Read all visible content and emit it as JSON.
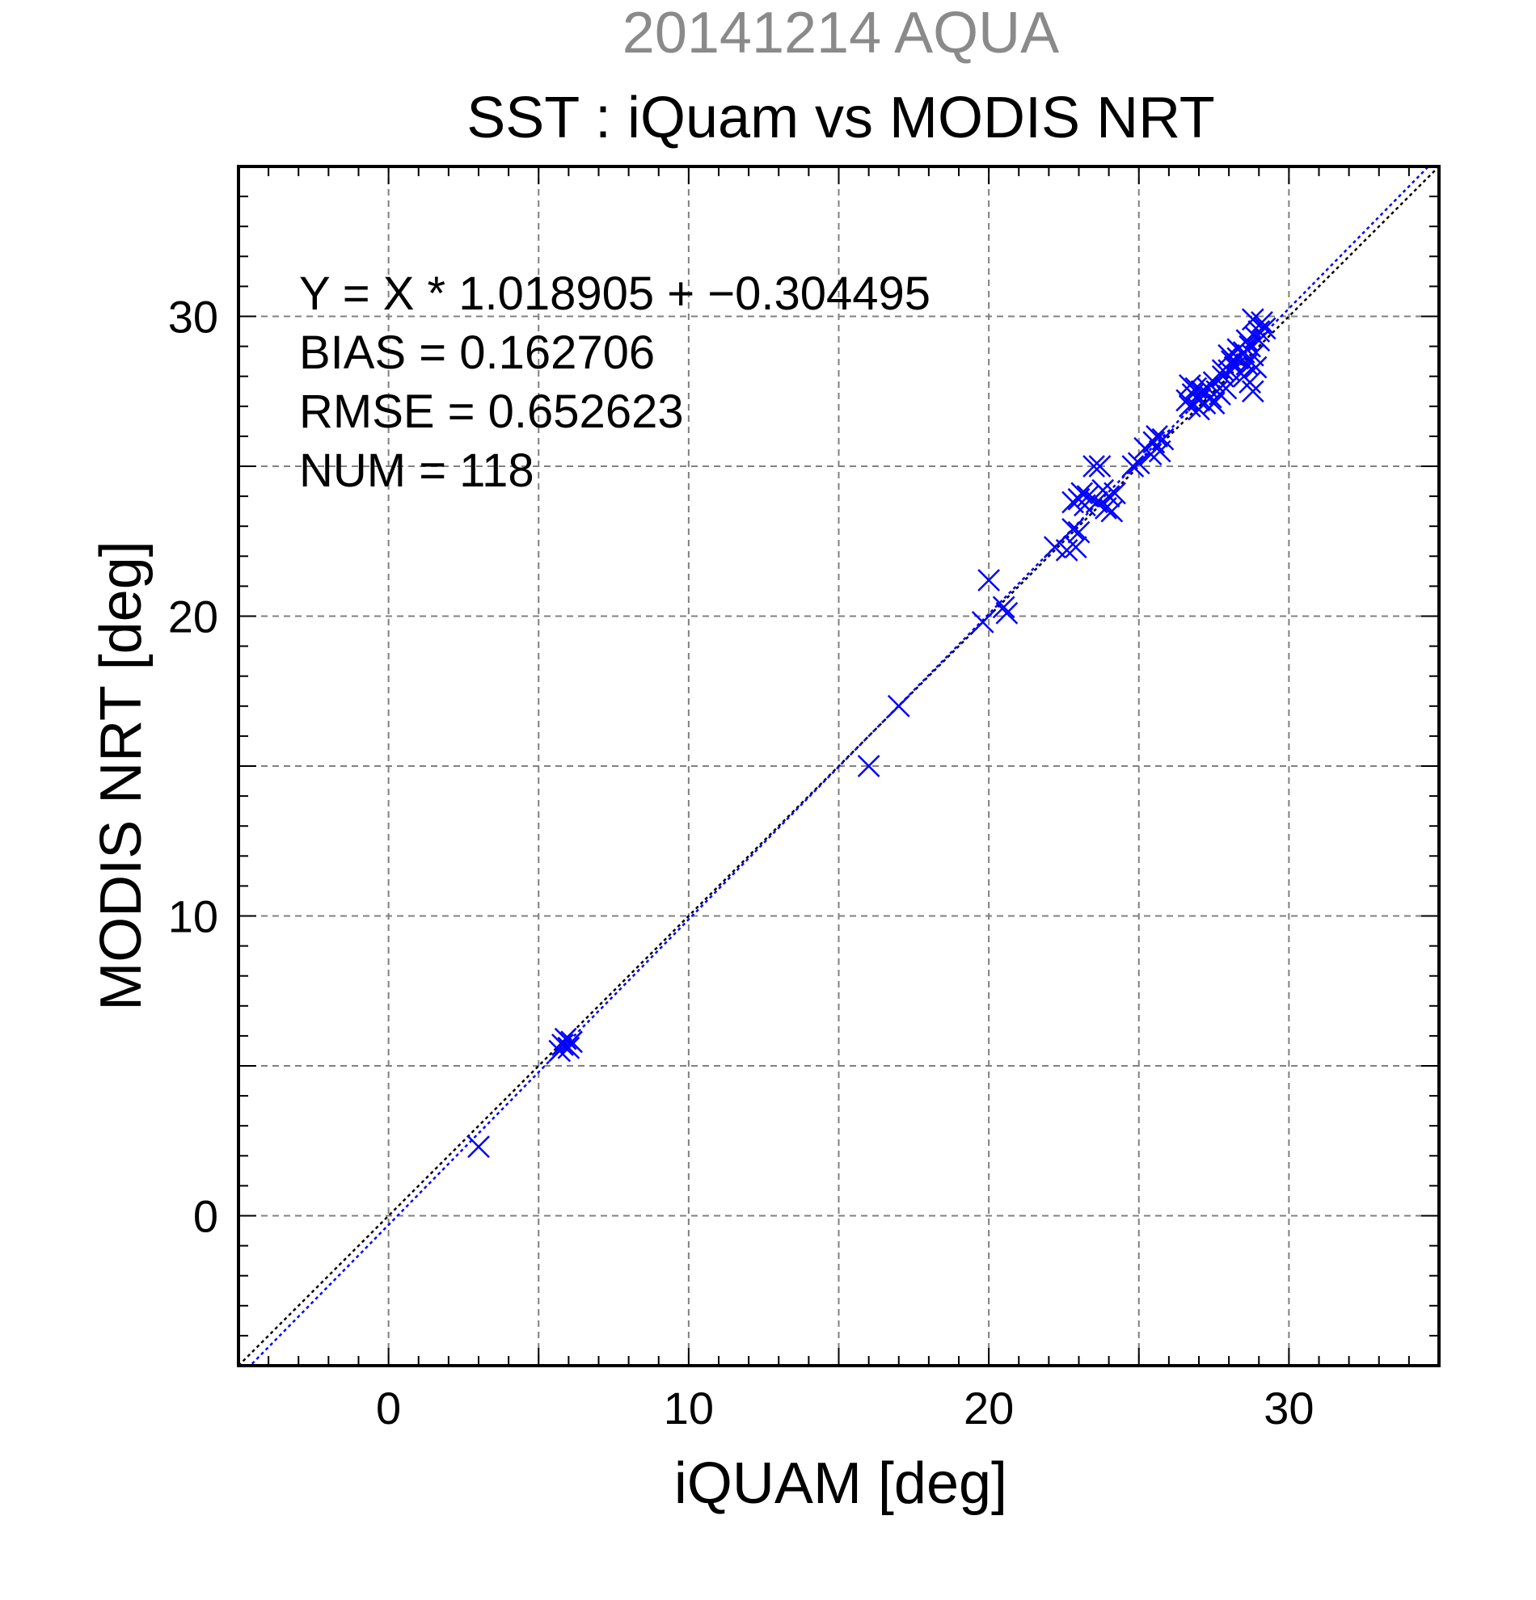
{
  "header": {
    "supertitle": "20141214 AQUA",
    "title": "SST : iQuam vs MODIS NRT"
  },
  "stats": {
    "equation": "Y = X * 1.018905 + −0.304495",
    "bias": "BIAS = 0.162706",
    "rmse": "RMSE = 0.652623",
    "num": "NUM = 118"
  },
  "colors": {
    "points": "#0000ff",
    "fit_line": "#0000ff",
    "identity_line": "#000000",
    "grid": "#808080",
    "supertitle": "#8a8a8a"
  },
  "chart_data": {
    "type": "scatter",
    "title": "SST : iQuam vs MODIS NRT",
    "xlabel": "iQUAM [deg]",
    "ylabel": "MODIS NRT [deg]",
    "xlim": [
      -5,
      35
    ],
    "ylim": [
      -5,
      35
    ],
    "xticks": [
      0,
      10,
      20,
      30
    ],
    "yticks": [
      0,
      10,
      20,
      30
    ],
    "grid": true,
    "marker": "x",
    "lines": [
      {
        "kind": "identity",
        "slope": 1,
        "intercept": 0,
        "style": "dotted",
        "color": "#000000"
      },
      {
        "kind": "fit",
        "slope": 1.018905,
        "intercept": -0.304495,
        "style": "dotted",
        "color": "#0000ff"
      }
    ],
    "points": [
      [
        3.0,
        2.3
      ],
      [
        5.8,
        5.7
      ],
      [
        5.9,
        5.9
      ],
      [
        6.0,
        5.6
      ],
      [
        6.1,
        5.8
      ],
      [
        5.7,
        5.5
      ],
      [
        16.0,
        15.0
      ],
      [
        17.0,
        17.0
      ],
      [
        19.8,
        19.8
      ],
      [
        20.0,
        21.2
      ],
      [
        20.5,
        20.3
      ],
      [
        20.6,
        20.1
      ],
      [
        22.2,
        22.3
      ],
      [
        22.6,
        22.2
      ],
      [
        22.8,
        22.9
      ],
      [
        22.9,
        22.3
      ],
      [
        23.0,
        22.8
      ],
      [
        22.8,
        23.8
      ],
      [
        23.0,
        23.9
      ],
      [
        23.1,
        24.1
      ],
      [
        23.2,
        23.7
      ],
      [
        23.3,
        24.0
      ],
      [
        23.5,
        25.0
      ],
      [
        23.7,
        25.0
      ],
      [
        23.6,
        23.8
      ],
      [
        23.8,
        24.2
      ],
      [
        23.9,
        23.6
      ],
      [
        24.0,
        24.0
      ],
      [
        24.1,
        23.5
      ],
      [
        24.2,
        24.1
      ],
      [
        24.8,
        25.0
      ],
      [
        25.0,
        25.1
      ],
      [
        25.2,
        25.6
      ],
      [
        25.4,
        25.4
      ],
      [
        25.5,
        25.8
      ],
      [
        25.6,
        26.0
      ],
      [
        25.7,
        25.5
      ],
      [
        25.8,
        25.9
      ],
      [
        26.6,
        27.2
      ],
      [
        26.7,
        27.0
      ],
      [
        26.8,
        27.4
      ],
      [
        26.9,
        27.6
      ],
      [
        27.0,
        27.2
      ],
      [
        27.1,
        27.5
      ],
      [
        27.2,
        27.1
      ],
      [
        27.3,
        27.6
      ],
      [
        27.4,
        27.3
      ],
      [
        27.5,
        27.8
      ],
      [
        27.6,
        27.5
      ],
      [
        27.7,
        27.4
      ],
      [
        27.8,
        28.0
      ],
      [
        27.9,
        27.6
      ],
      [
        28.0,
        28.2
      ],
      [
        28.1,
        28.5
      ],
      [
        28.2,
        28.3
      ],
      [
        28.3,
        28.6
      ],
      [
        28.4,
        28.1
      ],
      [
        28.5,
        28.8
      ],
      [
        28.6,
        28.4
      ],
      [
        28.7,
        29.0
      ],
      [
        28.8,
        28.7
      ],
      [
        28.9,
        29.3
      ],
      [
        29.0,
        29.5
      ],
      [
        29.1,
        29.8
      ],
      [
        28.8,
        29.9
      ],
      [
        29.0,
        29.2
      ],
      [
        29.2,
        29.6
      ],
      [
        28.9,
        28.3
      ],
      [
        28.7,
        27.8
      ],
      [
        28.8,
        27.5
      ],
      [
        28.5,
        28.0
      ],
      [
        28.6,
        29.2
      ],
      [
        28.3,
        28.9
      ],
      [
        28.0,
        28.7
      ],
      [
        27.8,
        28.2
      ],
      [
        27.5,
        27.1
      ],
      [
        26.7,
        27.7
      ],
      [
        27.0,
        26.9
      ]
    ]
  }
}
